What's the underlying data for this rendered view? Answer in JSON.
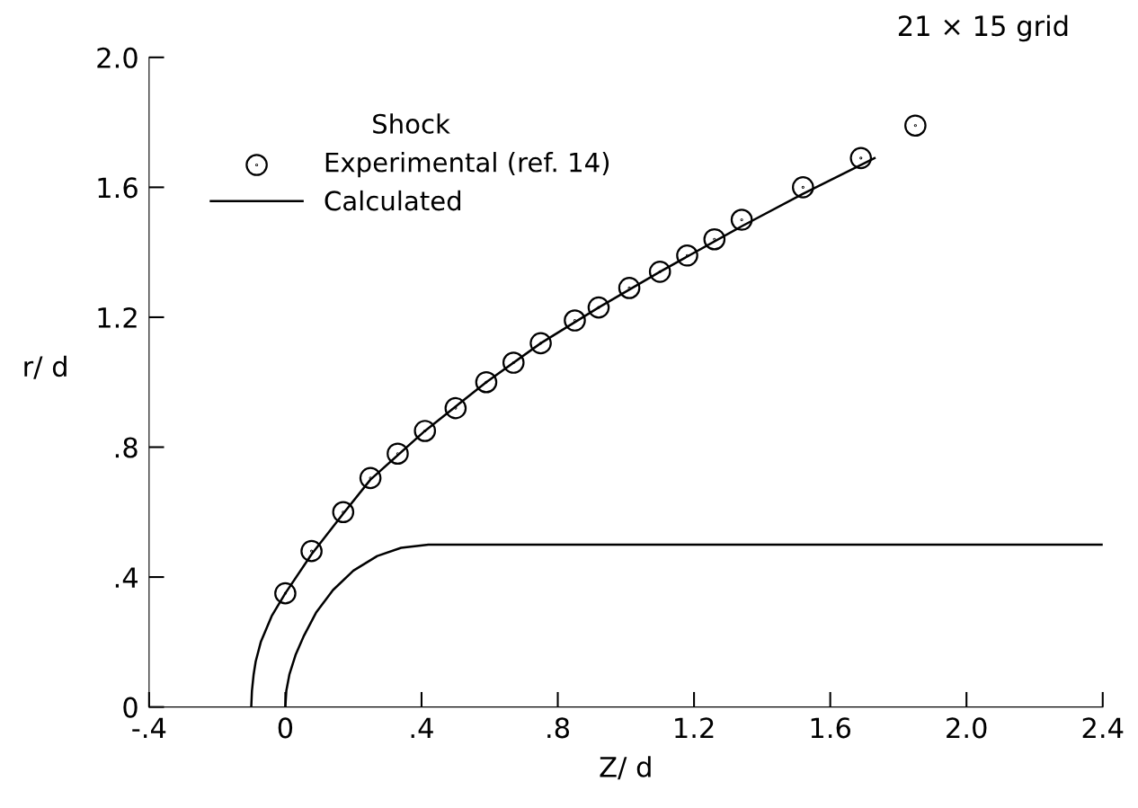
{
  "chart_data": {
    "type": "line",
    "xlabel": "Z/ d",
    "ylabel": "r/ d",
    "legend_title": "Shock",
    "legend": "top left",
    "grid": false,
    "annotations": [
      "21 × 15 grid"
    ],
    "xlim": [
      -0.4,
      2.4
    ],
    "ylim": [
      0,
      2.0
    ],
    "xticks": [
      {
        "value": -0.4,
        "label": "-.4"
      },
      0,
      {
        "value": 0.4,
        "label": ".4"
      },
      {
        "value": 0.8,
        "label": ".8"
      },
      1.2,
      1.6,
      {
        "value": 2.0,
        "label": "2.0"
      },
      2.4
    ],
    "yticks": [
      0,
      {
        "value": 0.4,
        "label": ".4"
      },
      {
        "value": 0.8,
        "label": ".8"
      },
      1.2,
      1.6,
      {
        "value": 2.0,
        "label": "2.0"
      }
    ],
    "series": [
      {
        "name": "Experimental (ref. 14)",
        "type": "scatter",
        "marker": "circle",
        "color": "#000000",
        "x": [
          0.0,
          0.077,
          0.17,
          0.25,
          0.33,
          0.41,
          0.5,
          0.59,
          0.67,
          0.75,
          0.85,
          0.92,
          1.01,
          1.1,
          1.18,
          1.26,
          1.34,
          1.52,
          1.69,
          1.85
        ],
        "values": [
          0.35,
          0.48,
          0.6,
          0.705,
          0.78,
          0.85,
          0.92,
          1.0,
          1.06,
          1.12,
          1.19,
          1.23,
          1.29,
          1.34,
          1.39,
          1.44,
          1.5,
          1.6,
          1.69,
          1.79
        ]
      },
      {
        "name": "Calculated",
        "color": "#000000",
        "line_style": "solid",
        "x": [
          -0.1,
          -0.098,
          -0.093,
          -0.087,
          -0.072,
          -0.04,
          0.0,
          0.077,
          0.17,
          0.25,
          0.41,
          0.59,
          0.75,
          0.92,
          1.1,
          1.34,
          1.52,
          1.73
        ],
        "values": [
          0,
          0.05,
          0.1,
          0.14,
          0.2,
          0.28,
          0.35,
          0.47,
          0.595,
          0.7,
          0.85,
          1.0,
          1.12,
          1.23,
          1.34,
          1.48,
          1.58,
          1.69
        ]
      },
      {
        "color": "#000000",
        "line_style": "solid",
        "x": [
          0,
          0.003,
          0.012,
          0.03,
          0.055,
          0.09,
          0.14,
          0.2,
          0.27,
          0.34,
          0.42,
          2.4
        ],
        "values": [
          0,
          0.05,
          0.1,
          0.16,
          0.22,
          0.29,
          0.36,
          0.42,
          0.465,
          0.49,
          0.5,
          0.5
        ]
      }
    ]
  }
}
